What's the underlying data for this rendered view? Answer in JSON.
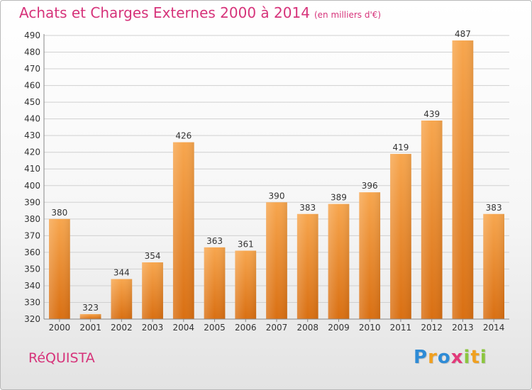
{
  "title": "Achats et Charges Externes 2000 à 2014",
  "unit": "(en milliers d'€)",
  "commune": "RéQUISTA",
  "logo": {
    "letters": [
      "P",
      "r",
      "o",
      "x",
      "i",
      "t",
      "i"
    ],
    "colors": [
      "#2e8bd6",
      "#f0a020",
      "#2e8bd6",
      "#e23a7a",
      "#8cc63f",
      "#f0a020",
      "#8cc63f"
    ]
  },
  "colors": {
    "title": "#d6337a",
    "bar_top": "#f7a64e",
    "bar_bottom": "#d96f12"
  },
  "chart_data": {
    "type": "bar",
    "categories": [
      "2000",
      "2001",
      "2002",
      "2003",
      "2004",
      "2005",
      "2006",
      "2007",
      "2008",
      "2009",
      "2010",
      "2011",
      "2012",
      "2013",
      "2014"
    ],
    "values": [
      380,
      323,
      344,
      354,
      426,
      363,
      361,
      390,
      383,
      389,
      396,
      419,
      439,
      487,
      383
    ],
    "ylim": [
      320,
      490
    ],
    "yticks": [
      320,
      330,
      340,
      350,
      360,
      370,
      380,
      390,
      400,
      410,
      420,
      430,
      440,
      450,
      460,
      470,
      480,
      490
    ],
    "grid": true,
    "data_labels": true
  }
}
